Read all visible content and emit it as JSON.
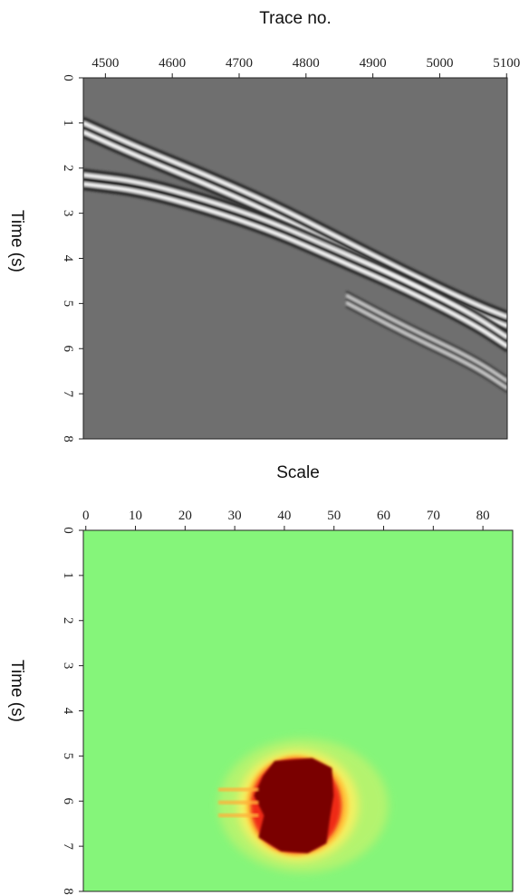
{
  "chart_data": [
    {
      "type": "heatmap",
      "title": "",
      "xlabel": "Trace no.",
      "ylabel": "Time (s)",
      "x_ticks": [
        4500,
        4600,
        4700,
        4800,
        4900,
        5000,
        5100
      ],
      "xlim": [
        4467,
        5101
      ],
      "y_ticks": [
        0,
        1,
        2,
        3,
        4,
        5,
        6,
        7,
        8
      ],
      "ylim": [
        0,
        8
      ],
      "colormap": "gray",
      "background_color": "#6f6f6f",
      "events": [
        {
          "name": "",
          "points": [
            [
              4467,
              1.1
            ],
            [
              4550,
              1.65
            ],
            [
              4650,
              2.25
            ],
            [
              4750,
              2.9
            ],
            [
              4850,
              3.65
            ],
            [
              4950,
              4.4
            ],
            [
              5050,
              5.1
            ],
            [
              5101,
              5.4
            ]
          ]
        },
        {
          "name": "",
          "points": [
            [
              4467,
              2.25
            ],
            [
              4550,
              2.4
            ],
            [
              4650,
              2.8
            ],
            [
              4750,
              3.3
            ],
            [
              4850,
              3.95
            ],
            [
              4950,
              4.6
            ],
            [
              5050,
              5.35
            ],
            [
              5101,
              5.85
            ]
          ]
        },
        {
          "name": "",
          "points": [
            [
              4860,
              4.9
            ],
            [
              4950,
              5.6
            ],
            [
              5050,
              6.3
            ],
            [
              5101,
              6.8
            ]
          ]
        }
      ]
    },
    {
      "type": "heatmap",
      "title": "",
      "xlabel": "Scale",
      "ylabel": "Time (s)",
      "x_ticks": [
        0,
        10,
        20,
        30,
        40,
        50,
        60,
        70,
        80
      ],
      "xlim": [
        -0.5,
        86
      ],
      "y_ticks": [
        0,
        1,
        2,
        3,
        4,
        5,
        6,
        7,
        8
      ],
      "ylim": [
        0,
        8
      ],
      "colormap": "jet",
      "background_color": "#85f57a",
      "hotspot": {
        "scale_range": [
          33,
          51
        ],
        "time_range": [
          5.0,
          7.2
        ],
        "peak_color": "#7a0000"
      }
    }
  ]
}
